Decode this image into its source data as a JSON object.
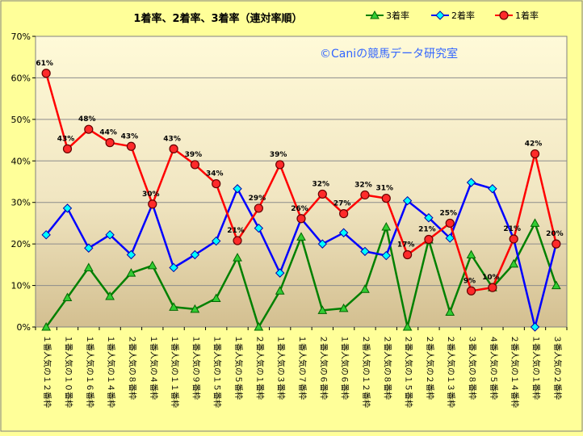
{
  "chart_data": {
    "type": "line",
    "title": "1着率、2着率、3着率（連対率順）",
    "watermark": "©Caniの競馬データ研究室",
    "xlabel": "",
    "ylabel": "",
    "ylim": [
      0,
      70
    ],
    "y_ticks": [
      "0%",
      "10%",
      "20%",
      "30%",
      "40%",
      "50%",
      "60%",
      "70%"
    ],
    "grid": true,
    "legend_position": "top-right",
    "categories": [
      "１番人気の１２番枠",
      "１番人気の１０番枠",
      "１番人気の１６番枠",
      "１番人気の１４番枠",
      "２番人気の８番枠",
      "１番人気の４番枠",
      "１番人気の１１番枠",
      "１番人気の９番枠",
      "１番人気の１５番枠",
      "１番人気の５番枠",
      "２番人気の１番枠",
      "１番人気の３番枠",
      "１番人気の７番枠",
      "２番人気の６番枠",
      "１番人気の６番枠",
      "２番人気の１２番枠",
      "２番人気の８番枠",
      "２番人気の１５番枠",
      "２番人気の２番枠",
      "２番人気の１３番枠",
      "３番人気の８番枠",
      "４番人気の５番枠",
      "２番人気の１４番枠",
      "１番人気の１番枠",
      "３番人気の２番枠"
    ],
    "series": [
      {
        "name": "3着率",
        "color": "#008000",
        "marker": "triangle",
        "values": [
          0,
          7.1,
          14.3,
          7.4,
          13,
          14.8,
          4.8,
          4.3,
          6.9,
          16.7,
          0,
          8.7,
          21.7,
          4,
          4.5,
          9.1,
          24.1,
          0,
          21,
          3.6,
          17.4,
          9.5,
          15.2,
          25,
          10
        ]
      },
      {
        "name": "2着率",
        "color": "#0000ff",
        "marker": "diamond",
        "values": [
          22.2,
          28.6,
          19,
          22.2,
          17.4,
          29.6,
          14.3,
          17.4,
          20.7,
          33.3,
          23.8,
          13,
          26.1,
          20,
          22.7,
          18.2,
          17.2,
          30.4,
          26.3,
          21.4,
          34.8,
          33.3,
          21.2,
          0,
          20
        ]
      },
      {
        "name": "1着率",
        "color": "#ff0000",
        "marker": "circle",
        "values": [
          61.1,
          42.9,
          47.6,
          44.4,
          43.5,
          29.6,
          42.9,
          39.1,
          34.5,
          20.8,
          28.6,
          39.1,
          26.1,
          32,
          27.3,
          31.8,
          31,
          17.4,
          21.1,
          25,
          8.7,
          9.5,
          21.2,
          41.7,
          20
        ],
        "data_labels": [
          "61%",
          "43%",
          "48%",
          "44%",
          "43%",
          "30%",
          "43%",
          "39%",
          "34%",
          "21%",
          "29%",
          "39%",
          "26%",
          "32%",
          "27%",
          "32%",
          "31%",
          "17%",
          "21%",
          "25%",
          "9%",
          "10%",
          "21%",
          "42%",
          "20%"
        ]
      }
    ]
  }
}
